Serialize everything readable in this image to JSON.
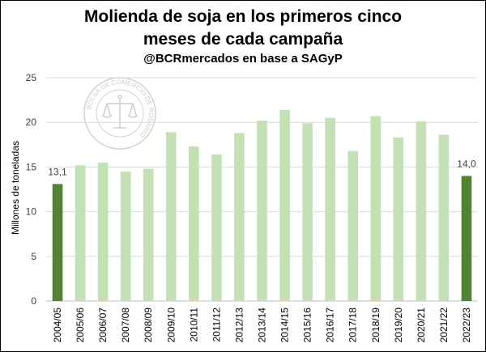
{
  "header": {
    "title_line1": "Molienda de soja en los primeros cinco",
    "title_line2": "meses de cada campaña",
    "subtitle": "@BCRmercados en base a SAGyP"
  },
  "watermark": {
    "text": "BOLSA DE COMERCIO DE ROSARIO",
    "icon": "scales-of-justice-icon"
  },
  "colors": {
    "highlight": "#548235",
    "normal": "#c5e0b4",
    "grid": "#d9d9d9"
  },
  "chart_data": {
    "type": "bar",
    "title": "Molienda de soja en los primeros cinco meses de cada campaña",
    "ylabel": "Millones de toneladas",
    "xlabel": "",
    "ylim": [
      0,
      25
    ],
    "yticks": [
      0,
      5,
      10,
      15,
      20,
      25
    ],
    "grid": true,
    "categories": [
      "2004/05",
      "2005/06",
      "2006/07",
      "2007/08",
      "2008/09",
      "2009/10",
      "2010/11",
      "2011/12",
      "2012/13",
      "2013/14",
      "2014/15",
      "2015/16",
      "2016/17",
      "2017/18",
      "2018/19",
      "2019/20",
      "2020/21",
      "2021/22",
      "2022/23"
    ],
    "values": [
      13.1,
      15.2,
      15.5,
      14.5,
      14.8,
      18.9,
      17.3,
      16.4,
      18.8,
      20.2,
      21.4,
      19.9,
      20.5,
      16.8,
      20.7,
      18.3,
      20.1,
      18.6,
      14.0
    ],
    "highlighted": [
      "2004/05",
      "2022/23"
    ],
    "data_labels": [
      {
        "category": "2004/05",
        "text": "13,1"
      },
      {
        "category": "2022/23",
        "text": "14,0"
      }
    ]
  }
}
